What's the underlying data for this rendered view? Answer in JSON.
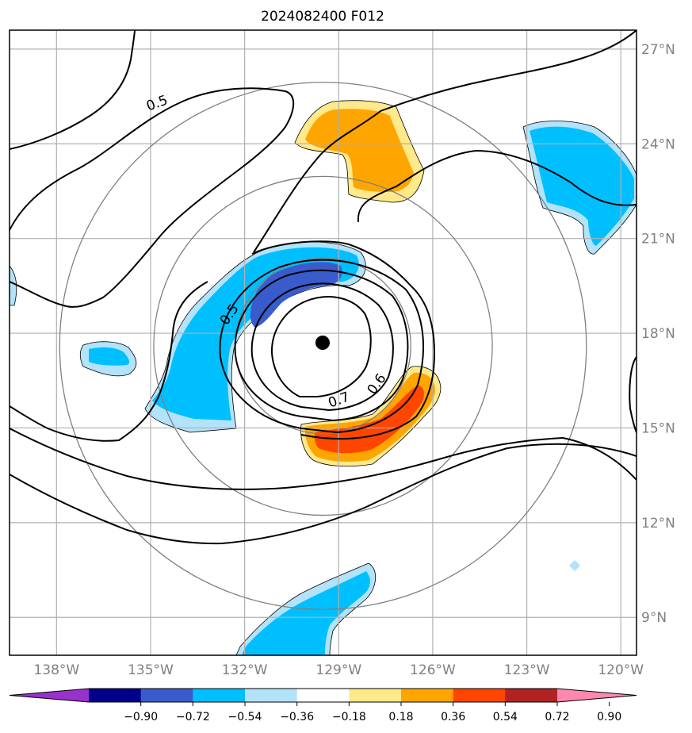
{
  "chart_data": {
    "type": "contour-map",
    "title": "2024082400 F012",
    "projection": "lat-lon",
    "lon_range": [
      -139.5,
      -119.5
    ],
    "lat_range": [
      7.8,
      27.6
    ],
    "lon_ticks": [
      {
        "value": -138,
        "label": "138°W"
      },
      {
        "value": -135,
        "label": "135°W"
      },
      {
        "value": -132,
        "label": "132°W"
      },
      {
        "value": -129,
        "label": "129°W"
      },
      {
        "value": -126,
        "label": "126°W"
      },
      {
        "value": -123,
        "label": "123°W"
      },
      {
        "value": -120,
        "label": "120°W"
      }
    ],
    "lat_ticks": [
      {
        "value": 27,
        "label": "27°N"
      },
      {
        "value": 24,
        "label": "24°N"
      },
      {
        "value": 21,
        "label": "21°N"
      },
      {
        "value": 18,
        "label": "18°N"
      },
      {
        "value": 15,
        "label": "15°N"
      },
      {
        "value": 12,
        "label": "12°N"
      },
      {
        "value": 9,
        "label": "9°N"
      }
    ],
    "grid": true,
    "center": {
      "lon": -129.5,
      "lat": 17.6
    },
    "range_rings_deg": [
      2.8,
      5.4,
      8.4
    ],
    "contour_labels": [
      {
        "text": "0.5",
        "lon": -134.8,
        "lat": 25.3
      },
      {
        "text": "0.5",
        "lon": -132.5,
        "lat": 18.6
      },
      {
        "text": "0.6",
        "lon": -127.8,
        "lat": 16.4
      },
      {
        "text": "0.7",
        "lon": -129.0,
        "lat": 15.9
      }
    ],
    "colorbar": {
      "orientation": "horizontal",
      "extend": "both",
      "ticks": [
        "−0.90",
        "−0.72",
        "−0.54",
        "−0.36",
        "−0.18",
        "0.18",
        "0.36",
        "0.54",
        "0.72",
        "0.90"
      ],
      "colors": [
        "#9932cc",
        "#00008b",
        "#3a5bcc",
        "#00bfff",
        "#b3e2fb",
        "#ffffff",
        "#ffe98a",
        "#ffa500",
        "#ff4500",
        "#b22222",
        "#ff88b0"
      ]
    }
  }
}
